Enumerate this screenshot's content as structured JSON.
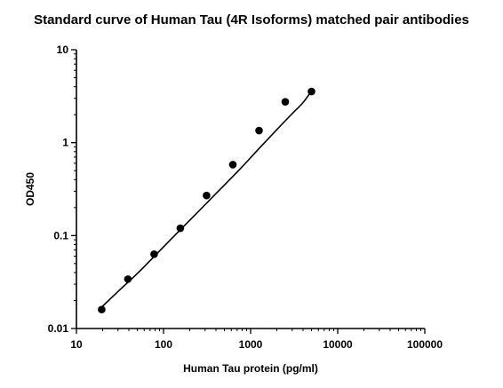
{
  "chart_data": {
    "type": "scatter",
    "title": "Standard curve of Human Tau (4R Isoforms) matched pair antibodies",
    "xlabel": "Human Tau protein (pg/ml)",
    "ylabel": "OD450",
    "x_scale": "log",
    "y_scale": "log",
    "xlim": [
      10,
      100000
    ],
    "ylim": [
      0.01,
      10
    ],
    "x_ticks": [
      "10",
      "100",
      "1000",
      "10000",
      "100000"
    ],
    "y_ticks": [
      "0.01",
      "0.1",
      "1",
      "10"
    ],
    "grid": false,
    "legend": "none",
    "points": {
      "x": [
        19.5,
        39,
        78,
        156,
        312,
        625,
        1250,
        2500,
        5000
      ],
      "y": [
        0.016,
        0.034,
        0.063,
        0.12,
        0.27,
        0.58,
        1.35,
        2.75,
        3.55
      ]
    },
    "fit_curve": {
      "type": "4PL",
      "x": [
        19.5,
        30,
        50,
        80,
        120,
        200,
        300,
        500,
        800,
        1200,
        2000,
        3000,
        4000,
        5000
      ],
      "y": [
        0.017,
        0.025,
        0.039,
        0.061,
        0.09,
        0.146,
        0.215,
        0.35,
        0.55,
        0.83,
        1.38,
        2.05,
        2.7,
        3.6
      ]
    },
    "marker_color": "#000000",
    "line_color": "#000000"
  }
}
